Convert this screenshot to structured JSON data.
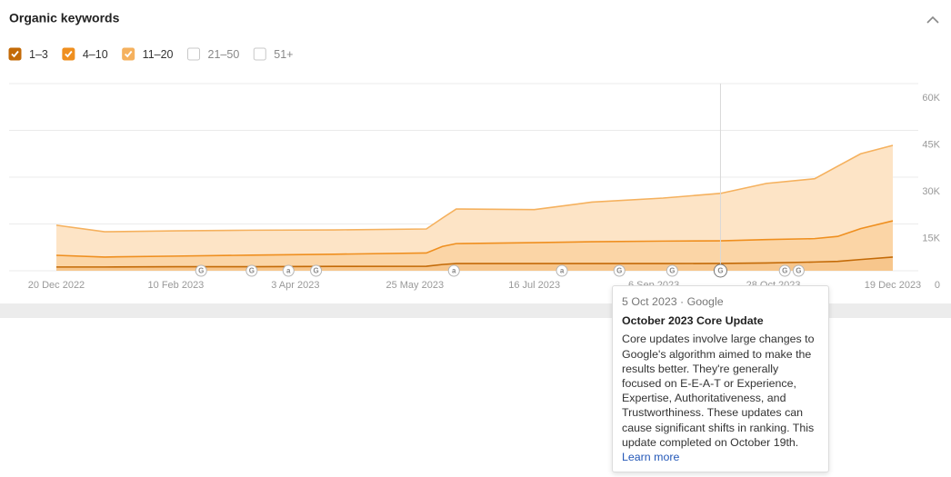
{
  "chart_data": {
    "type": "stacked-area",
    "title": "Organic keywords",
    "x": [
      "2022-12-20",
      "2023-01-10",
      "2023-02-10",
      "2023-03-15",
      "2023-04-20",
      "2023-05-30",
      "2023-06-06",
      "2023-06-12",
      "2023-07-16",
      "2023-08-10",
      "2023-09-10",
      "2023-10-05",
      "2023-10-25",
      "2023-11-15",
      "2023-11-25",
      "2023-12-05",
      "2023-12-19"
    ],
    "series": [
      {
        "name": "1–3",
        "color": "#c36a07",
        "fill": "#f7c68c",
        "values": [
          1200,
          1200,
          1300,
          1300,
          1400,
          1450,
          2000,
          2300,
          2300,
          2300,
          2300,
          2350,
          2500,
          2800,
          3000,
          3600,
          4400
        ]
      },
      {
        "name": "4–10",
        "color": "#ef8f1f",
        "fill": "#fbd5a6",
        "values": [
          3750,
          3200,
          3400,
          3700,
          3900,
          4250,
          5800,
          6400,
          6700,
          7000,
          7200,
          7250,
          7500,
          7500,
          8000,
          9900,
          11600
        ]
      },
      {
        "name": "11–20",
        "color": "#f5b15e",
        "fill": "#fde4c6",
        "values": [
          9650,
          8100,
          8100,
          8000,
          7800,
          7700,
          9100,
          11100,
          10600,
          12700,
          13800,
          15200,
          18000,
          19200,
          22500,
          24000,
          24200
        ]
      }
    ],
    "hidden_series": [
      {
        "name": "21–50"
      },
      {
        "name": "51+"
      }
    ],
    "xlim": [
      "2022-12-20",
      "2023-12-19"
    ],
    "xticks": [
      {
        "value": "2022-12-20",
        "label": "20 Dec 2022"
      },
      {
        "value": "2023-02-10",
        "label": "10 Feb 2023"
      },
      {
        "value": "2023-04-03",
        "label": "3 Apr 2023"
      },
      {
        "value": "2023-05-25",
        "label": "25 May 2023"
      },
      {
        "value": "2023-07-16",
        "label": "16 Jul 2023"
      },
      {
        "value": "2023-09-06",
        "label": "6 Sep 2023"
      },
      {
        "value": "2023-10-28",
        "label": "28 Oct 2023"
      },
      {
        "value": "2023-12-19",
        "label": "19 Dec 2023"
      }
    ],
    "ylim": [
      0,
      60000
    ],
    "yticks": [
      0,
      {
        "value": 15000,
        "label": "15K"
      },
      {
        "value": 30000,
        "label": "30K"
      },
      {
        "value": 45000,
        "label": "45K"
      },
      {
        "value": 60000,
        "label": "60K"
      }
    ],
    "grid": true,
    "events": [
      {
        "x": "2023-02-21",
        "label": "G"
      },
      {
        "x": "2023-03-15",
        "label": "G"
      },
      {
        "x": "2023-03-31",
        "label": "a"
      },
      {
        "x": "2023-04-12",
        "label": "G"
      },
      {
        "x": "2023-06-11",
        "label": "a"
      },
      {
        "x": "2023-07-28",
        "label": "a"
      },
      {
        "x": "2023-08-22",
        "label": "G"
      },
      {
        "x": "2023-09-14",
        "label": "G"
      },
      {
        "x": "2023-10-05",
        "label": "G",
        "active": true
      },
      {
        "x": "2023-11-02",
        "label": "G"
      },
      {
        "x": "2023-11-08",
        "label": "G"
      }
    ]
  },
  "tooltip": {
    "meta": "5 Oct 2023 · Google",
    "title": "October 2023 Core Update",
    "body": "Core updates involve large changes to Google's algorithm aimed to make the results better. They're generally focused on E-E-A-T or Experience, Expertise, Authoritativeness, and Trustworthiness. These updates can cause significant shifts in ranking. This update completed on October 19th.",
    "link": "Learn more"
  }
}
